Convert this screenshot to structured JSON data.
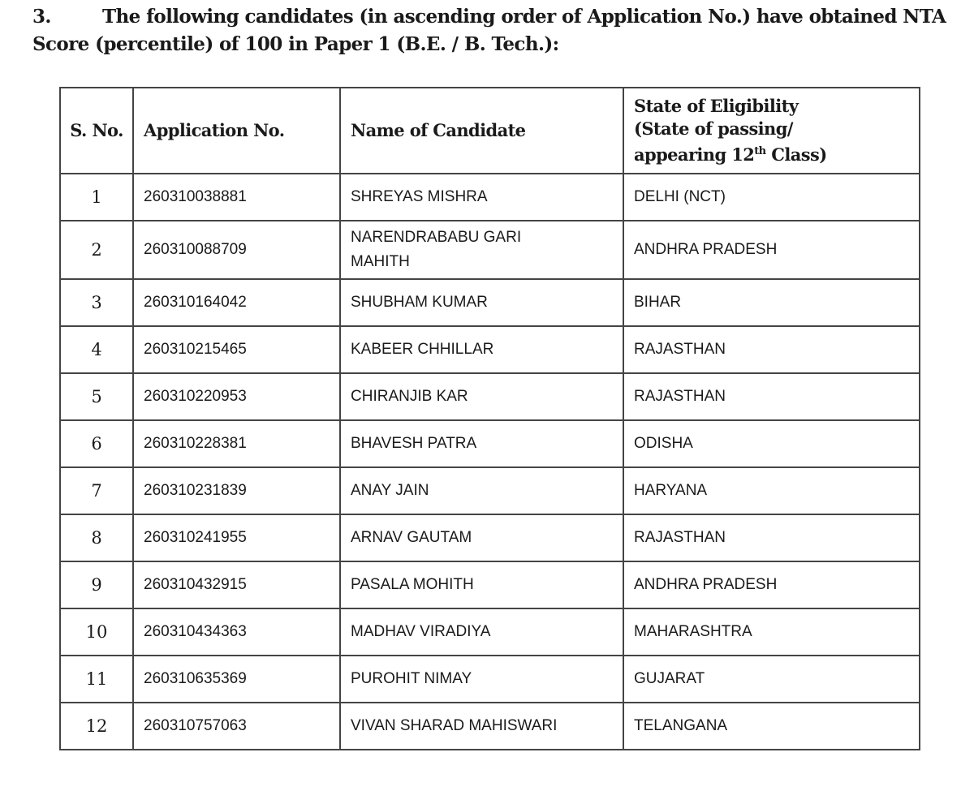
{
  "heading": {
    "number": "3.",
    "text": "The following candidates (in ascending order of Application No.) have obtained NTA Score (percentile) of 100 in Paper 1 (B.E. / B. Tech.):"
  },
  "table": {
    "headers": {
      "sno": "S. No.",
      "application": "Application No.",
      "name": "Name of Candidate",
      "state_line1": "State of Eligibility",
      "state_line2": "(State of passing/",
      "state_line3_pre": "appearing 12",
      "state_line3_sup": "th",
      "state_line3_post": " Class)"
    },
    "rows": [
      {
        "sno": "1",
        "app": "260310038881",
        "name": "SHREYAS MISHRA",
        "state": "DELHI (NCT)"
      },
      {
        "sno": "2",
        "app": "260310088709",
        "name": "NARENDRABABU GARI MAHITH",
        "state": "ANDHRA PRADESH"
      },
      {
        "sno": "3",
        "app": "260310164042",
        "name": "SHUBHAM KUMAR",
        "state": "BIHAR"
      },
      {
        "sno": "4",
        "app": "260310215465",
        "name": "KABEER CHHILLAR",
        "state": "RAJASTHAN"
      },
      {
        "sno": "5",
        "app": "260310220953",
        "name": "CHIRANJIB KAR",
        "state": "RAJASTHAN"
      },
      {
        "sno": "6",
        "app": "260310228381",
        "name": "BHAVESH PATRA",
        "state": "ODISHA"
      },
      {
        "sno": "7",
        "app": "260310231839",
        "name": "ANAY JAIN",
        "state": "HARYANA"
      },
      {
        "sno": "8",
        "app": "260310241955",
        "name": "ARNAV GAUTAM",
        "state": "RAJASTHAN"
      },
      {
        "sno": "9",
        "app": "260310432915",
        "name": "PASALA MOHITH",
        "state": "ANDHRA PRADESH"
      },
      {
        "sno": "10",
        "app": "260310434363",
        "name": "MADHAV VIRADIYA",
        "state": "MAHARASHTRA"
      },
      {
        "sno": "11",
        "app": "260310635369",
        "name": "PUROHIT NIMAY",
        "state": "GUJARAT"
      },
      {
        "sno": "12",
        "app": "260310757063",
        "name": "VIVAN SHARAD MAHISWARI",
        "state": "TELANGANA"
      }
    ]
  }
}
